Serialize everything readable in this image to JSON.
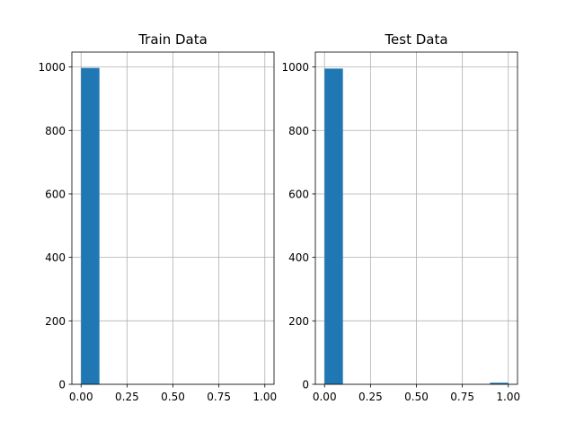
{
  "chart_data": [
    {
      "type": "bar",
      "subtype": "histogram",
      "title": "Train Data",
      "xlabel": "",
      "ylabel": "",
      "xlim": [
        -0.05,
        1.05
      ],
      "ylim": [
        0,
        1047
      ],
      "xticks": [
        0.0,
        0.25,
        0.5,
        0.75,
        1.0
      ],
      "xtick_labels": [
        "0.00",
        "0.25",
        "0.50",
        "0.75",
        "1.00"
      ],
      "yticks": [
        0,
        200,
        400,
        600,
        800,
        1000
      ],
      "ytick_labels": [
        "0",
        "200",
        "400",
        "600",
        "800",
        "1000"
      ],
      "bins": [
        {
          "x0": 0.0,
          "x1": 0.1,
          "count": 997
        }
      ],
      "grid": true,
      "color": "#1f77b4"
    },
    {
      "type": "bar",
      "subtype": "histogram",
      "title": "Test Data",
      "xlabel": "",
      "ylabel": "",
      "xlim": [
        -0.05,
        1.05
      ],
      "ylim": [
        0,
        1047
      ],
      "xticks": [
        0.0,
        0.25,
        0.5,
        0.75,
        1.0
      ],
      "xtick_labels": [
        "0.00",
        "0.25",
        "0.50",
        "0.75",
        "1.00"
      ],
      "yticks": [
        0,
        200,
        400,
        600,
        800,
        1000
      ],
      "ytick_labels": [
        "0",
        "200",
        "400",
        "600",
        "800",
        "1000"
      ],
      "bins": [
        {
          "x0": 0.0,
          "x1": 0.1,
          "count": 995
        },
        {
          "x0": 0.9,
          "x1": 1.0,
          "count": 5
        }
      ],
      "grid": true,
      "color": "#1f77b4"
    }
  ]
}
